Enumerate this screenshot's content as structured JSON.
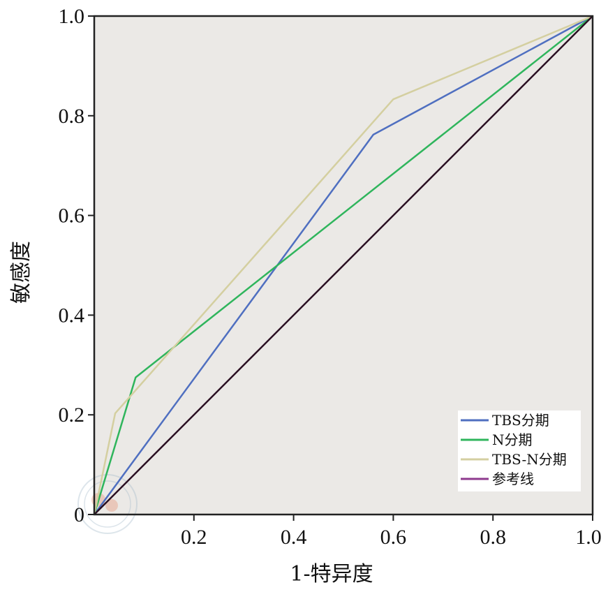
{
  "chart_data": {
    "type": "line",
    "title": "",
    "xlabel": "1-特异度",
    "ylabel": "敏感度",
    "xlim": [
      0,
      1
    ],
    "ylim": [
      0,
      1
    ],
    "x_ticks": [
      {
        "value": 0.2,
        "label": "0.2"
      },
      {
        "value": 0.4,
        "label": "0.4"
      },
      {
        "value": 0.6,
        "label": "0.6"
      },
      {
        "value": 0.8,
        "label": "0.8"
      },
      {
        "value": 1.0,
        "label": "1.0"
      }
    ],
    "y_ticks": [
      {
        "value": 0,
        "label": "0"
      },
      {
        "value": 0.2,
        "label": "0.2"
      },
      {
        "value": 0.4,
        "label": "0.4"
      },
      {
        "value": 0.6,
        "label": "0.6"
      },
      {
        "value": 0.8,
        "label": "0.8"
      },
      {
        "value": 1.0,
        "label": "1.0"
      }
    ],
    "grid": false,
    "legend_position": "bottom-right",
    "background_color": "#ebe9e6",
    "series": [
      {
        "name": "TBS分期",
        "color": "#4f6fc0",
        "points": [
          [
            0,
            0
          ],
          [
            0.56,
            0.762
          ],
          [
            1,
            1
          ]
        ]
      },
      {
        "name": "N分期",
        "color": "#2fb55c",
        "points": [
          [
            0,
            0
          ],
          [
            0.083,
            0.275
          ],
          [
            1,
            1
          ]
        ]
      },
      {
        "name": "TBS-N分期",
        "color": "#d4cfa0",
        "points": [
          [
            0,
            0
          ],
          [
            0.042,
            0.203
          ],
          [
            0.6,
            0.833
          ],
          [
            1,
            1
          ]
        ]
      },
      {
        "name": "参考线",
        "color": "#2a0f22",
        "legend_color": "#8e3a8e",
        "points": [
          [
            0,
            0
          ],
          [
            1,
            1
          ]
        ]
      }
    ]
  }
}
